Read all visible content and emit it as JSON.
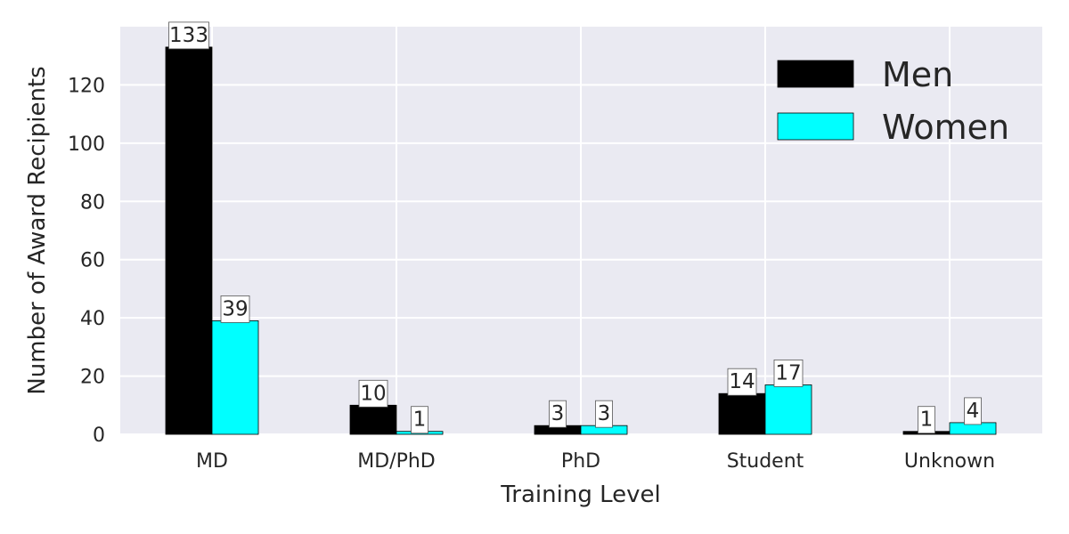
{
  "chart_data": {
    "type": "bar",
    "xlabel": "Training Level",
    "ylabel": "Number of Award Recipients",
    "categories": [
      "MD",
      "MD/PhD",
      "PhD",
      "Student",
      "Unknown"
    ],
    "series": [
      {
        "name": "Men",
        "color": "#000000",
        "values": [
          133,
          10,
          3,
          14,
          1
        ]
      },
      {
        "name": "Women",
        "color": "#00ffff",
        "values": [
          39,
          1,
          3,
          17,
          4
        ]
      }
    ],
    "ylim": [
      0,
      140
    ],
    "yticks": [
      0,
      20,
      40,
      60,
      80,
      100,
      120
    ],
    "grid": true,
    "legend_position": "top-right",
    "background": "#eaeaf2"
  }
}
